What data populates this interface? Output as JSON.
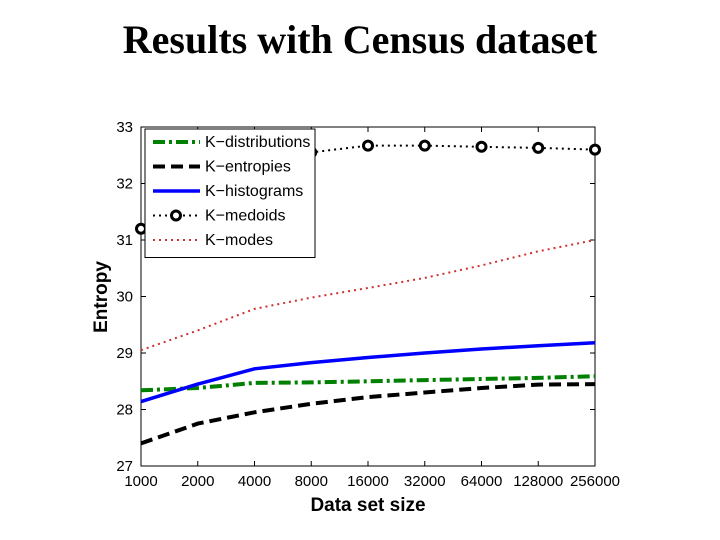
{
  "slide": {
    "title": "Results with Census dataset"
  },
  "chart_data": {
    "type": "line",
    "title": "",
    "xlabel": "Data set size",
    "ylabel": "Entropy",
    "categories": [
      "1000",
      "2000",
      "4000",
      "8000",
      "16000",
      "32000",
      "64000",
      "128000",
      "256000"
    ],
    "ylim": [
      27,
      33
    ],
    "yticks": [
      "27",
      "28",
      "29",
      "30",
      "31",
      "32",
      "33"
    ],
    "grid": false,
    "legend_position": "top-left",
    "series": [
      {
        "name": "K−distributions",
        "color": "#008000",
        "dash": "dashdot",
        "marker": "none",
        "values": [
          28.34,
          28.38,
          28.47,
          28.48,
          28.5,
          28.52,
          28.54,
          28.56,
          28.59
        ]
      },
      {
        "name": "K−entropies",
        "color": "#000000",
        "dash": "dashed",
        "marker": "none",
        "values": [
          27.4,
          27.75,
          27.95,
          28.1,
          28.22,
          28.3,
          28.38,
          28.44,
          28.45
        ]
      },
      {
        "name": "K−histograms",
        "color": "#0000ff",
        "dash": "solid",
        "marker": "none",
        "values": [
          28.14,
          28.45,
          28.72,
          28.83,
          28.92,
          29.0,
          29.07,
          29.13,
          29.18
        ]
      },
      {
        "name": "K−medoids",
        "color": "#000000",
        "dash": "dotted",
        "marker": "circle",
        "values": [
          31.2,
          31.75,
          32.2,
          32.55,
          32.67,
          32.67,
          32.65,
          32.63,
          32.6
        ]
      },
      {
        "name": "K−modes",
        "color": "#d03030",
        "dash": "dotted",
        "marker": "none",
        "values": [
          29.05,
          29.4,
          29.78,
          29.98,
          30.15,
          30.33,
          30.55,
          30.8,
          31.0
        ]
      }
    ]
  }
}
